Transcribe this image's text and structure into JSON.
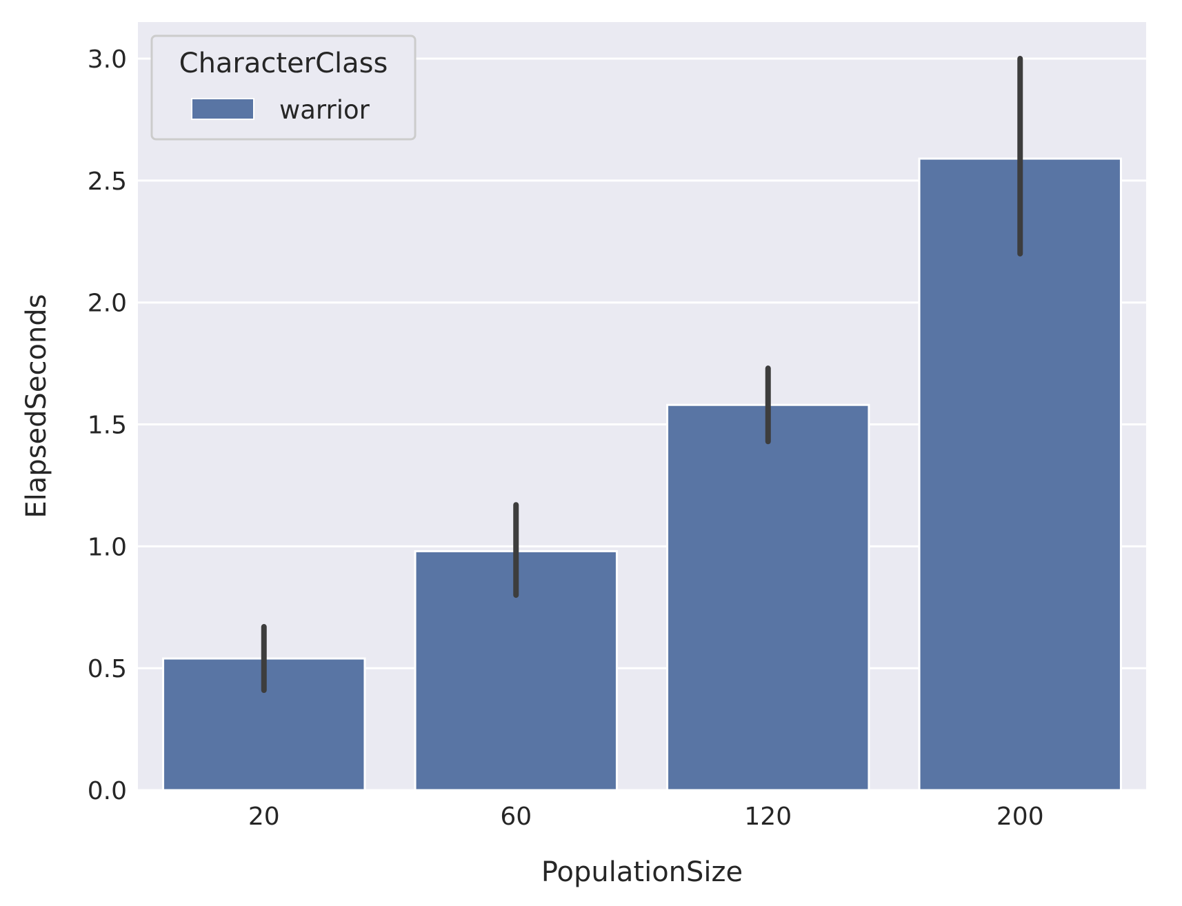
{
  "chart_data": {
    "type": "bar",
    "title": "",
    "xlabel": "PopulationSize",
    "ylabel": "ElapsedSeconds",
    "categories": [
      "20",
      "60",
      "120",
      "200"
    ],
    "series": [
      {
        "name": "warrior",
        "values": [
          0.54,
          0.98,
          1.58,
          2.59
        ],
        "ci_low": [
          0.41,
          0.8,
          1.43,
          2.2
        ],
        "ci_high": [
          0.67,
          1.17,
          1.73,
          3.0
        ]
      }
    ],
    "ylim": [
      0,
      3.15
    ],
    "yticks": [
      "0.0",
      "0.5",
      "1.0",
      "1.5",
      "2.0",
      "2.5",
      "3.0"
    ],
    "grid": true,
    "legend": {
      "title": "CharacterClass",
      "placement": "top-left"
    },
    "colors": {
      "bar": "#5975a4",
      "plot_background": "#eaeaf2",
      "grid": "#ffffff",
      "error_bar": "#3d3d3d"
    }
  }
}
